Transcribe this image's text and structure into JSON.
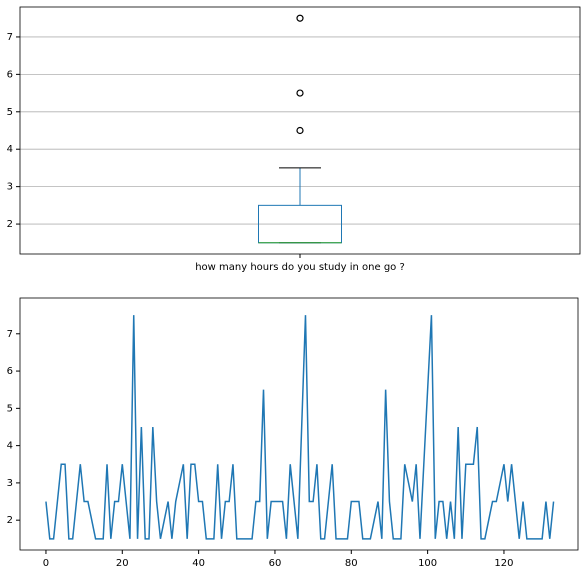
{
  "chart_data": [
    {
      "type": "box",
      "categories": [
        "how many hours do you study in one go ?"
      ],
      "whislo": 1.5,
      "q1": 1.5,
      "med": 1.5,
      "q3": 2.5,
      "whishi": 3.5,
      "fliers": [
        4.5,
        5.5,
        7.5
      ],
      "color": "#1f77b4",
      "median_color": "#2ca02c",
      "ylim": [
        1.2,
        7.8
      ],
      "yticks": [
        2,
        3,
        4,
        5,
        6,
        7
      ],
      "grid": true
    },
    {
      "type": "line",
      "x": [
        0,
        1,
        2,
        3,
        4,
        5,
        6,
        7,
        8,
        9,
        10,
        11,
        12,
        13,
        14,
        15,
        16,
        17,
        18,
        19,
        20,
        21,
        22,
        23,
        24,
        25,
        26,
        27,
        28,
        29,
        30,
        31,
        32,
        33,
        34,
        35,
        36,
        37,
        38,
        39,
        40,
        41,
        42,
        43,
        44,
        45,
        46,
        47,
        48,
        49,
        50,
        51,
        52,
        53,
        54,
        55,
        56,
        57,
        58,
        59,
        60,
        61,
        62,
        63,
        64,
        65,
        66,
        67,
        68,
        69,
        70,
        71,
        72,
        73,
        74,
        75,
        76,
        77,
        78,
        79,
        80,
        81,
        82,
        83,
        84,
        85,
        86,
        87,
        88,
        89,
        90,
        91,
        92,
        93,
        94,
        95,
        96,
        97,
        98,
        99,
        100,
        101,
        102,
        103,
        104,
        105,
        106,
        107,
        108,
        109,
        110,
        111,
        112,
        113,
        114,
        115,
        116,
        117,
        118,
        119,
        120,
        121,
        122,
        123,
        124,
        125,
        126,
        127,
        128,
        129,
        130,
        131,
        132,
        133
      ],
      "series": [
        {
          "name": "how many hours do you study in one go ?",
          "color": "#1f77b4",
          "values": [
            2.5,
            1.5,
            1.5,
            2.5,
            3.5,
            3.5,
            1.5,
            1.5,
            2.5,
            3.5,
            2.5,
            2.5,
            2,
            1.5,
            1.5,
            1.5,
            3.5,
            1.5,
            2.5,
            2.5,
            3.5,
            2.5,
            1.5,
            7.5,
            1.5,
            4.5,
            1.5,
            1.5,
            4.5,
            2.5,
            1.5,
            2,
            2.5,
            1.5,
            2.5,
            3,
            3.5,
            1.5,
            3.5,
            3.5,
            2.5,
            2.5,
            1.5,
            1.5,
            1.5,
            3.5,
            1.5,
            2.5,
            2.5,
            3.5,
            1.5,
            1.5,
            1.5,
            1.5,
            1.5,
            2.5,
            2.5,
            5.5,
            1.5,
            2.5,
            2.5,
            2.5,
            2.5,
            1.5,
            3.5,
            2.5,
            1.5,
            4.5,
            7.5,
            2.5,
            2.5,
            3.5,
            1.5,
            1.5,
            2.5,
            3.5,
            1.5,
            1.5,
            1.5,
            1.5,
            2.5,
            2.5,
            2.5,
            1.5,
            1.5,
            1.5,
            2,
            2.5,
            1.5,
            5.5,
            2.5,
            1.5,
            1.5,
            1.5,
            3.5,
            3,
            2.5,
            3.5,
            1.5,
            3.5,
            5.5,
            7.5,
            1.5,
            2.5,
            2.5,
            1.5,
            2.5,
            1.5,
            4.5,
            1.5,
            3.5,
            3.5,
            3.5,
            4.5,
            1.5,
            1.5,
            2,
            2.5,
            2.5,
            3,
            3.5,
            2.5,
            3.5,
            2.5,
            1.5,
            2.5,
            1.5,
            1.5,
            1.5,
            1.5,
            1.5,
            2.5,
            1.5,
            2.5
          ]
        }
      ],
      "xlim": [
        -6.8,
        139.4
      ],
      "xticks": [
        0,
        20,
        40,
        60,
        80,
        100,
        120
      ],
      "ylim": [
        1.2,
        7.96
      ],
      "yticks": [
        2,
        3,
        4,
        5,
        6,
        7
      ]
    }
  ]
}
